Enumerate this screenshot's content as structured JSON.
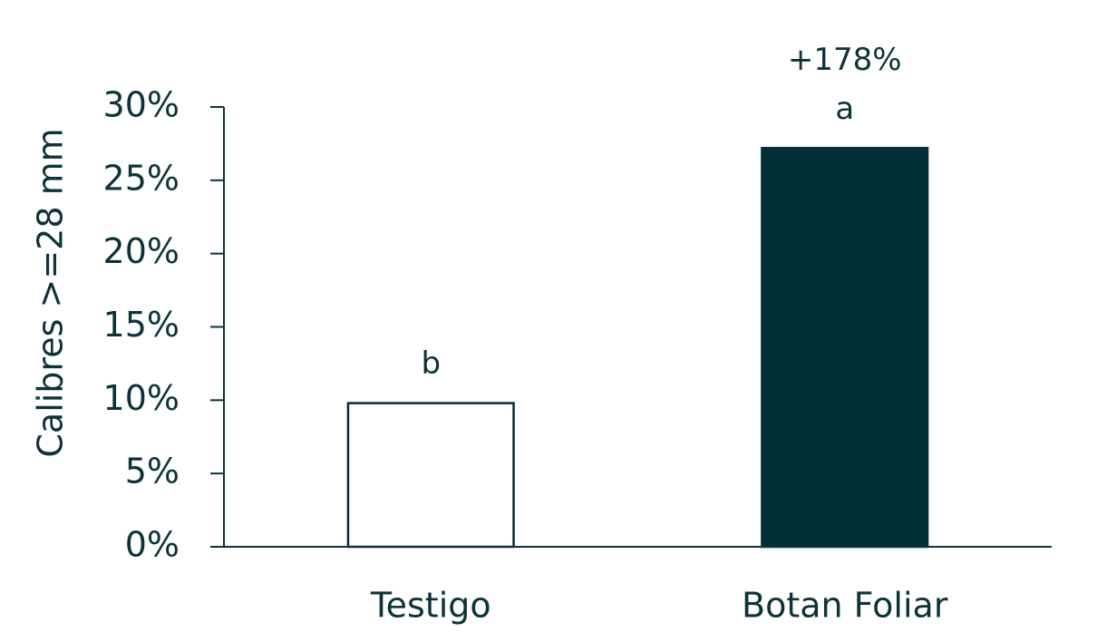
{
  "chart_data": {
    "type": "bar",
    "ylabel": "Calibres >=28 mm",
    "categories": [
      "Testigo",
      "Botan Foliar"
    ],
    "values": [
      9.8,
      27.2
    ],
    "colors": [
      "#ffffff",
      "#022f36"
    ],
    "edgecolor": "#022f36",
    "annotations": [
      [
        "b"
      ],
      [
        "+178%",
        "a"
      ]
    ],
    "ylim": [
      0,
      30
    ],
    "yticks": [
      {
        "value": 0,
        "label": "0%"
      },
      {
        "value": 5,
        "label": "5%"
      },
      {
        "value": 10,
        "label": "10%"
      },
      {
        "value": 15,
        "label": "15%"
      },
      {
        "value": 20,
        "label": "20%"
      },
      {
        "value": 25,
        "label": "25%"
      },
      {
        "value": 30,
        "label": "30%"
      }
    ],
    "grid": false
  }
}
